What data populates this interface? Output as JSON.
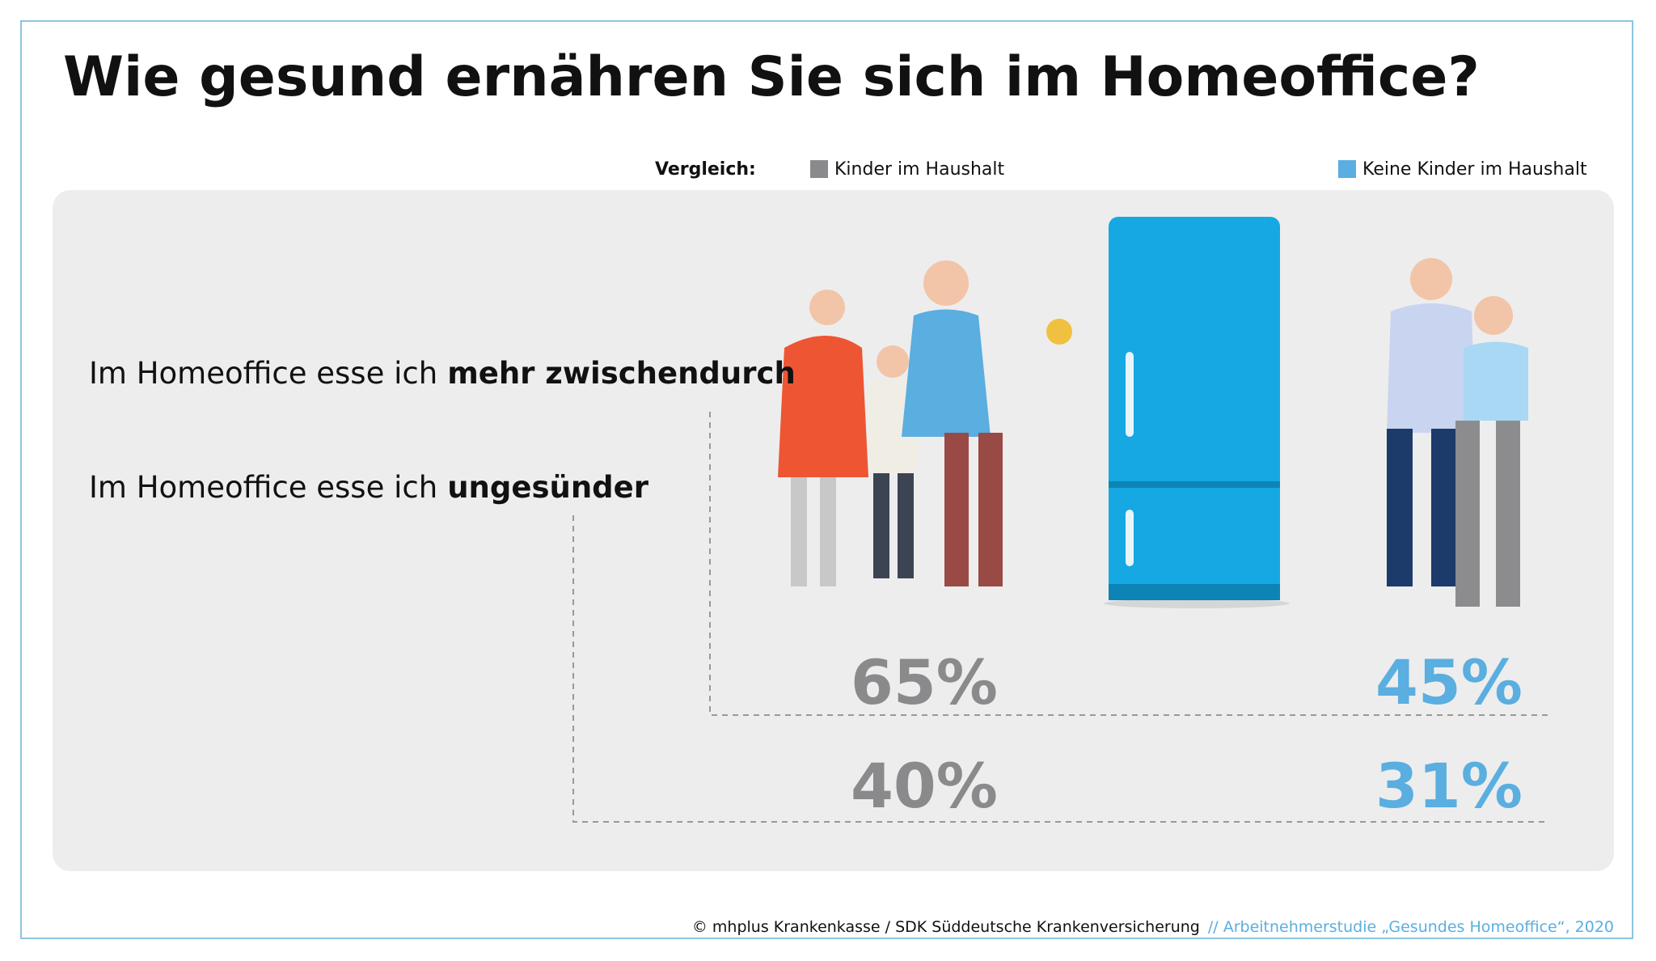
{
  "title": "Wie gesund ernähren Sie sich im Homeoffice?",
  "legend": {
    "label": "Vergleich:",
    "items": [
      {
        "name": "Kinder im Haushalt",
        "color": "#8a8a8c"
      },
      {
        "name": "Keine Kinder im Haushalt",
        "color": "#5aaee0"
      }
    ]
  },
  "rows": [
    {
      "text": "Im Homeoffice esse ich",
      "bold": "mehr zwischendurch",
      "values": [
        "65%",
        "45%"
      ]
    },
    {
      "text": "Im Homeoffice esse ich",
      "bold": "ungesünder",
      "values": [
        "40%",
        "31%"
      ]
    }
  ],
  "footer": {
    "copyright": "© mhplus Krankenkasse / SDK Süddeutsche Krankenversicherung",
    "source": "// Arbeitnehmerstudie „Gesundes Homeoffice“, 2020"
  }
}
